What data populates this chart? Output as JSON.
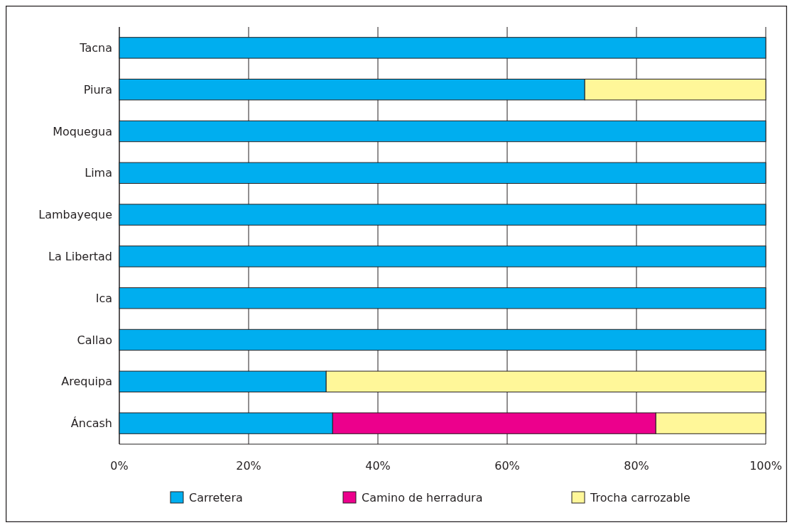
{
  "chart_data": {
    "type": "bar",
    "orientation": "horizontal",
    "stacked": true,
    "categories": [
      "Tacna",
      "Piura",
      "Moquegua",
      "Lima",
      "Lambayeque",
      "La Libertad",
      "Ica",
      "Callao",
      "Arequipa",
      "Áncash"
    ],
    "series": [
      {
        "name": "Carretera",
        "color": "#00aeef",
        "values": [
          100,
          72,
          100,
          100,
          100,
          100,
          100,
          100,
          32,
          33
        ]
      },
      {
        "name": "Camino de herradura",
        "color": "#ec008c",
        "values": [
          0,
          0,
          0,
          0,
          0,
          0,
          0,
          0,
          0,
          50
        ]
      },
      {
        "name": "Trocha carrozable",
        "color": "#fff799",
        "values": [
          0,
          28,
          0,
          0,
          0,
          0,
          0,
          0,
          68,
          17
        ]
      }
    ],
    "xlim": [
      0,
      100
    ],
    "xticks": [
      {
        "value": 0,
        "label": "0%"
      },
      {
        "value": 20,
        "label": "20%"
      },
      {
        "value": 40,
        "label": "40%"
      },
      {
        "value": 60,
        "label": "60%"
      },
      {
        "value": 80,
        "label": "80%"
      },
      {
        "value": 100,
        "label": "100%"
      }
    ],
    "grid": "x",
    "legend": "bottom"
  }
}
